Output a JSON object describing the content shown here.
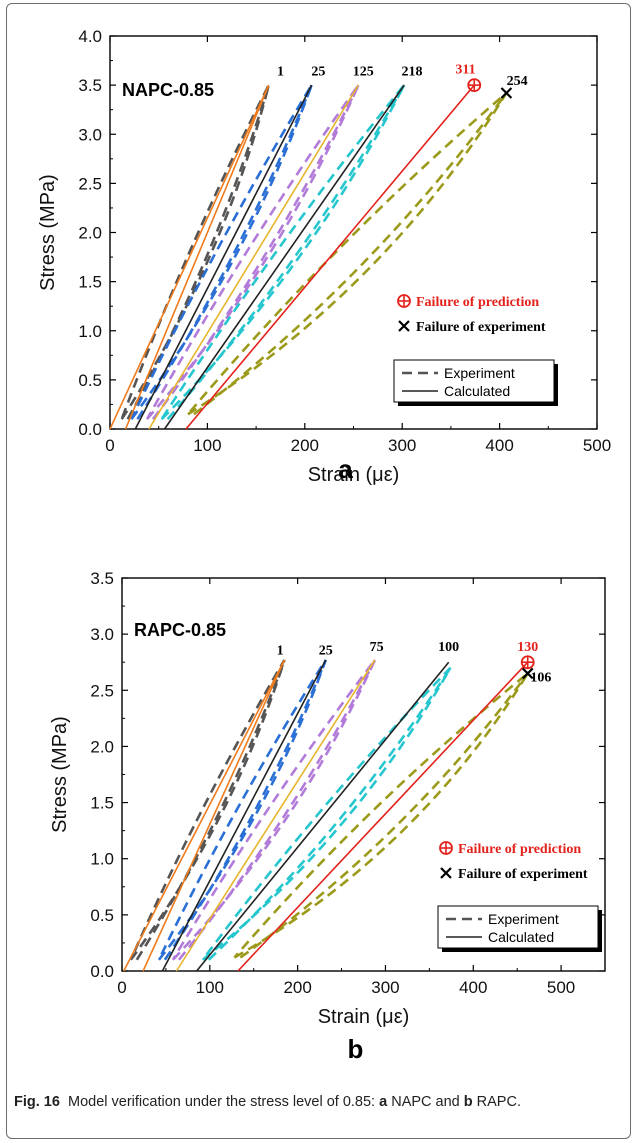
{
  "figure": {
    "caption_label": "Fig. 16",
    "caption_text": "Model verification under the stress level of 0.85: ",
    "caption_a": "a",
    "caption_mid": " NAPC and ",
    "caption_b": "b",
    "caption_end": " RAPC."
  },
  "colors": {
    "dark": "#555555",
    "orange": "#f07b1c",
    "blue": "#2a6fd6",
    "gold": "#e6b52c",
    "purple": "#b27bd9",
    "cyan": "#26c6cf",
    "olive": "#9c9a1a",
    "black": "#222222",
    "red": "#e3221c"
  },
  "legend": {
    "experiment": "Experiment",
    "calculated": "Calculated"
  },
  "failure": {
    "prediction": "Failure of prediction",
    "experiment": "Failure of experiment"
  },
  "chart_data": [
    {
      "type": "line",
      "panel_letter": "a",
      "title": "NAPC-0.85",
      "xlabel": "Strain (με)",
      "ylabel": "Stress (MPa)",
      "xlim": [
        0,
        500
      ],
      "ylim": [
        0,
        4.0
      ],
      "xticks": [
        0,
        100,
        200,
        300,
        400,
        500
      ],
      "yticks": [
        0.0,
        0.5,
        1.0,
        1.5,
        2.0,
        2.5,
        3.0,
        3.5,
        4.0
      ],
      "cycle_labels": [
        {
          "text": "1",
          "x": 175,
          "y": 3.6,
          "color": "#000"
        },
        {
          "text": "25",
          "x": 214,
          "y": 3.6,
          "color": "#000"
        },
        {
          "text": "125",
          "x": 260,
          "y": 3.6,
          "color": "#000"
        },
        {
          "text": "218",
          "x": 310,
          "y": 3.6,
          "color": "#000"
        },
        {
          "text": "311",
          "x": 365,
          "y": 3.62,
          "color": "#e3221c"
        },
        {
          "text": "254",
          "x": 418,
          "y": 3.5,
          "color": "#000"
        }
      ],
      "experiment_loops": [
        {
          "color": "dark",
          "x0": 12,
          "y0": 0.1,
          "x1": 163,
          "y1": 3.5,
          "bow": 30
        },
        {
          "color": "blue",
          "x0": 22,
          "y0": 0.1,
          "x1": 207,
          "y1": 3.5,
          "bow": 28
        },
        {
          "color": "purple",
          "x0": 38,
          "y0": 0.1,
          "x1": 255,
          "y1": 3.5,
          "bow": 30
        },
        {
          "color": "cyan",
          "x0": 53,
          "y0": 0.1,
          "x1": 302,
          "y1": 3.5,
          "bow": 32
        },
        {
          "color": "olive",
          "x0": 80,
          "y0": 0.15,
          "x1": 407,
          "y1": 3.42,
          "bow": 52
        }
      ],
      "calculated_curves": [
        {
          "color": "orange",
          "points": [
            [
              0,
              0
            ],
            [
              163,
              3.5
            ]
          ]
        },
        {
          "color": "orange",
          "points": [
            [
              16,
              0
            ],
            [
              163,
              3.5
            ]
          ]
        },
        {
          "color": "black",
          "points": [
            [
              26,
              0
            ],
            [
              207,
              3.5
            ]
          ]
        },
        {
          "color": "gold",
          "points": [
            [
              40,
              0
            ],
            [
              255,
              3.5
            ]
          ]
        },
        {
          "color": "black",
          "points": [
            [
              56,
              0
            ],
            [
              302,
              3.5
            ]
          ]
        },
        {
          "color": "red",
          "points": [
            [
              78,
              0
            ],
            [
              374,
              3.5
            ]
          ]
        }
      ],
      "prediction_point": {
        "x": 374,
        "y": 3.5
      },
      "experiment_point": {
        "x": 407,
        "y": 3.42
      }
    },
    {
      "type": "line",
      "panel_letter": "b",
      "title": "RAPC-0.85",
      "xlabel": "Strain (με)",
      "ylabel": "Stress (MPa)",
      "xlim": [
        0,
        550
      ],
      "ylim": [
        0,
        3.5
      ],
      "xticks": [
        0,
        100,
        200,
        300,
        400,
        500
      ],
      "yticks": [
        0.0,
        0.5,
        1.0,
        1.5,
        2.0,
        2.5,
        3.0,
        3.5
      ],
      "cycle_labels": [
        {
          "text": "1",
          "x": 180,
          "y": 2.82,
          "color": "#000"
        },
        {
          "text": "25",
          "x": 232,
          "y": 2.82,
          "color": "#000"
        },
        {
          "text": "75",
          "x": 290,
          "y": 2.85,
          "color": "#000"
        },
        {
          "text": "100",
          "x": 372,
          "y": 2.85,
          "color": "#000"
        },
        {
          "text": "130",
          "x": 462,
          "y": 2.85,
          "color": "#e3221c"
        },
        {
          "text": "106",
          "x": 477,
          "y": 2.58,
          "color": "#000"
        }
      ],
      "experiment_loops": [
        {
          "color": "dark",
          "x0": 10,
          "y0": 0.1,
          "x1": 185,
          "y1": 2.77,
          "bow": 28
        },
        {
          "color": "blue",
          "x0": 42,
          "y0": 0.1,
          "x1": 232,
          "y1": 2.77,
          "bow": 28
        },
        {
          "color": "purple",
          "x0": 58,
          "y0": 0.1,
          "x1": 288,
          "y1": 2.77,
          "bow": 30
        },
        {
          "color": "cyan",
          "x0": 92,
          "y0": 0.1,
          "x1": 374,
          "y1": 2.7,
          "bow": 36
        },
        {
          "color": "olive",
          "x0": 128,
          "y0": 0.12,
          "x1": 462,
          "y1": 2.65,
          "bow": 52
        }
      ],
      "calculated_curves": [
        {
          "color": "orange",
          "points": [
            [
              2,
              0
            ],
            [
              185,
              2.77
            ]
          ]
        },
        {
          "color": "orange",
          "points": [
            [
              24,
              0
            ],
            [
              185,
              2.77
            ]
          ]
        },
        {
          "color": "black",
          "points": [
            [
              46,
              0
            ],
            [
              232,
              2.77
            ]
          ]
        },
        {
          "color": "gold",
          "points": [
            [
              62,
              0
            ],
            [
              288,
              2.77
            ]
          ]
        },
        {
          "color": "black",
          "points": [
            [
              85,
              0
            ],
            [
              372,
              2.75
            ]
          ]
        },
        {
          "color": "red",
          "points": [
            [
              132,
              0
            ],
            [
              462,
              2.75
            ]
          ]
        }
      ],
      "prediction_point": {
        "x": 462,
        "y": 2.75
      },
      "experiment_point": {
        "x": 462,
        "y": 2.65
      }
    }
  ]
}
